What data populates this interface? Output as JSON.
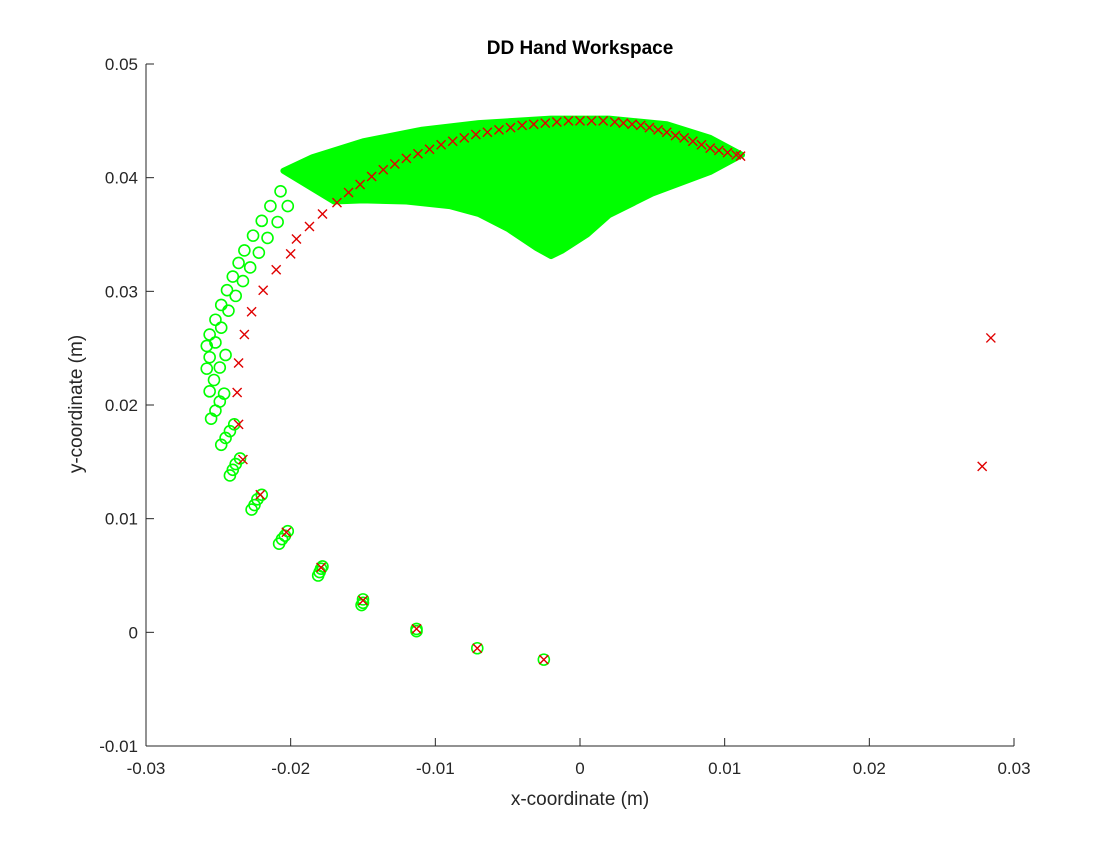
{
  "chart_data": {
    "type": "scatter",
    "title": "DD Hand Workspace",
    "xlabel": "x-coordinate (m)",
    "ylabel": "y-coordinate (m)",
    "xlim": [
      -0.03,
      0.03
    ],
    "ylim": [
      -0.01,
      0.05
    ],
    "x_ticks": [
      "-0.03",
      "-0.02",
      "-0.01",
      "0",
      "0.01",
      "0.02",
      "0.03"
    ],
    "y_ticks": [
      "-0.01",
      "0",
      "0.01",
      "0.02",
      "0.03",
      "0.04",
      "0.05"
    ],
    "grid": false,
    "legend": "none",
    "colors": {
      "green": "#00ff00",
      "red": "#e00000",
      "axis": "#262626"
    },
    "series": [
      {
        "marker": "circle",
        "color": "#00ff00",
        "region_outline": [
          [
            -0.0205,
            0.0406
          ],
          [
            -0.0185,
            0.0418
          ],
          [
            -0.015,
            0.0432
          ],
          [
            -0.011,
            0.0442
          ],
          [
            -0.007,
            0.0448
          ],
          [
            -0.002,
            0.0452
          ],
          [
            0.002,
            0.0452
          ],
          [
            0.006,
            0.0447
          ],
          [
            0.009,
            0.0435
          ],
          [
            0.0112,
            0.042
          ],
          [
            0.009,
            0.0405
          ],
          [
            0.005,
            0.0386
          ],
          [
            0.002,
            0.0367
          ],
          [
            0.0005,
            0.035
          ],
          [
            -0.0012,
            0.0336
          ],
          [
            -0.002,
            0.0331
          ],
          [
            -0.003,
            0.0338
          ],
          [
            -0.005,
            0.0355
          ],
          [
            -0.007,
            0.0368
          ],
          [
            -0.009,
            0.0375
          ],
          [
            -0.012,
            0.0379
          ],
          [
            -0.015,
            0.038
          ],
          [
            -0.017,
            0.0379
          ]
        ],
        "points": [
          [
            -0.0258,
            0.0252
          ],
          [
            -0.0256,
            0.0262
          ],
          [
            -0.0252,
            0.0275
          ],
          [
            -0.0248,
            0.0288
          ],
          [
            -0.0244,
            0.0301
          ],
          [
            -0.024,
            0.0313
          ],
          [
            -0.0236,
            0.0325
          ],
          [
            -0.0232,
            0.0336
          ],
          [
            -0.0226,
            0.0349
          ],
          [
            -0.022,
            0.0362
          ],
          [
            -0.0214,
            0.0375
          ],
          [
            -0.0207,
            0.0388
          ],
          [
            -0.0258,
            0.0232
          ],
          [
            -0.0256,
            0.0242
          ],
          [
            -0.0252,
            0.0255
          ],
          [
            -0.0248,
            0.0268
          ],
          [
            -0.0243,
            0.0283
          ],
          [
            -0.0238,
            0.0296
          ],
          [
            -0.0233,
            0.0309
          ],
          [
            -0.0228,
            0.0321
          ],
          [
            -0.0222,
            0.0334
          ],
          [
            -0.0216,
            0.0347
          ],
          [
            -0.0209,
            0.0361
          ],
          [
            -0.0202,
            0.0375
          ],
          [
            -0.0256,
            0.0212
          ],
          [
            -0.0253,
            0.0222
          ],
          [
            -0.0249,
            0.0233
          ],
          [
            -0.0245,
            0.0244
          ],
          [
            -0.0255,
            0.0188
          ],
          [
            -0.0252,
            0.0195
          ],
          [
            -0.0249,
            0.0203
          ],
          [
            -0.0246,
            0.021
          ],
          [
            -0.0248,
            0.0165
          ],
          [
            -0.0245,
            0.0171
          ],
          [
            -0.0242,
            0.0177
          ],
          [
            -0.0239,
            0.0183
          ],
          [
            -0.0242,
            0.0138
          ],
          [
            -0.024,
            0.0143
          ],
          [
            -0.0238,
            0.0148
          ],
          [
            -0.0235,
            0.0153
          ],
          [
            -0.0227,
            0.0108
          ],
          [
            -0.0225,
            0.0112
          ],
          [
            -0.0223,
            0.0117
          ],
          [
            -0.022,
            0.0121
          ],
          [
            -0.0208,
            0.0078
          ],
          [
            -0.0206,
            0.0082
          ],
          [
            -0.0204,
            0.0085
          ],
          [
            -0.0202,
            0.0089
          ],
          [
            -0.0181,
            0.005
          ],
          [
            -0.018,
            0.0053
          ],
          [
            -0.0179,
            0.0056
          ],
          [
            -0.0178,
            0.0058
          ],
          [
            -0.0151,
            0.0024
          ],
          [
            -0.015,
            0.0026
          ],
          [
            -0.015,
            0.0029
          ],
          [
            -0.0113,
            0.0001
          ],
          [
            -0.0113,
            0.0003
          ],
          [
            -0.0071,
            -0.0014
          ],
          [
            -0.0025,
            -0.0024
          ]
        ]
      },
      {
        "marker": "x",
        "color": "#e00000",
        "points": [
          [
            -0.0025,
            -0.0024
          ],
          [
            -0.0071,
            -0.0014
          ],
          [
            -0.0113,
            0.0003
          ],
          [
            -0.015,
            0.0028
          ],
          [
            -0.0179,
            0.0057
          ],
          [
            -0.0203,
            0.0088
          ],
          [
            -0.0221,
            0.0121
          ],
          [
            -0.0233,
            0.0152
          ],
          [
            -0.0236,
            0.0183
          ],
          [
            -0.0237,
            0.0211
          ],
          [
            -0.0236,
            0.0237
          ],
          [
            -0.0232,
            0.0262
          ],
          [
            -0.0227,
            0.0282
          ],
          [
            -0.0219,
            0.0301
          ],
          [
            -0.021,
            0.0319
          ],
          [
            -0.02,
            0.0333
          ],
          [
            -0.0196,
            0.0346
          ],
          [
            -0.0187,
            0.0357
          ],
          [
            -0.0178,
            0.0368
          ],
          [
            -0.0168,
            0.0378
          ],
          [
            -0.016,
            0.0387
          ],
          [
            -0.0152,
            0.0394
          ],
          [
            -0.0144,
            0.0401
          ],
          [
            -0.0136,
            0.0407
          ],
          [
            -0.0128,
            0.0412
          ],
          [
            -0.012,
            0.0417
          ],
          [
            -0.0112,
            0.0421
          ],
          [
            -0.0104,
            0.0425
          ],
          [
            -0.0096,
            0.0429
          ],
          [
            -0.0088,
            0.0432
          ],
          [
            -0.008,
            0.0435
          ],
          [
            -0.0072,
            0.0438
          ],
          [
            -0.0064,
            0.044
          ],
          [
            -0.0056,
            0.0442
          ],
          [
            -0.0048,
            0.0444
          ],
          [
            -0.004,
            0.0446
          ],
          [
            -0.0032,
            0.0447
          ],
          [
            -0.0024,
            0.0448
          ],
          [
            -0.0016,
            0.0449
          ],
          [
            -0.0008,
            0.045
          ],
          [
            0.0,
            0.045
          ],
          [
            0.0008,
            0.045
          ],
          [
            0.0016,
            0.045
          ],
          [
            0.0024,
            0.0449
          ],
          [
            0.003,
            0.0448
          ],
          [
            0.0036,
            0.0447
          ],
          [
            0.0042,
            0.0446
          ],
          [
            0.0048,
            0.0444
          ],
          [
            0.0054,
            0.0442
          ],
          [
            0.006,
            0.044
          ],
          [
            0.0066,
            0.0437
          ],
          [
            0.0072,
            0.0435
          ],
          [
            0.0078,
            0.0432
          ],
          [
            0.0084,
            0.0429
          ],
          [
            0.009,
            0.0426
          ],
          [
            0.0096,
            0.0424
          ],
          [
            0.0102,
            0.0422
          ],
          [
            0.0108,
            0.042
          ],
          [
            0.0111,
            0.0419
          ],
          [
            0.0284,
            0.0259
          ],
          [
            0.0278,
            0.0146
          ]
        ]
      }
    ]
  }
}
